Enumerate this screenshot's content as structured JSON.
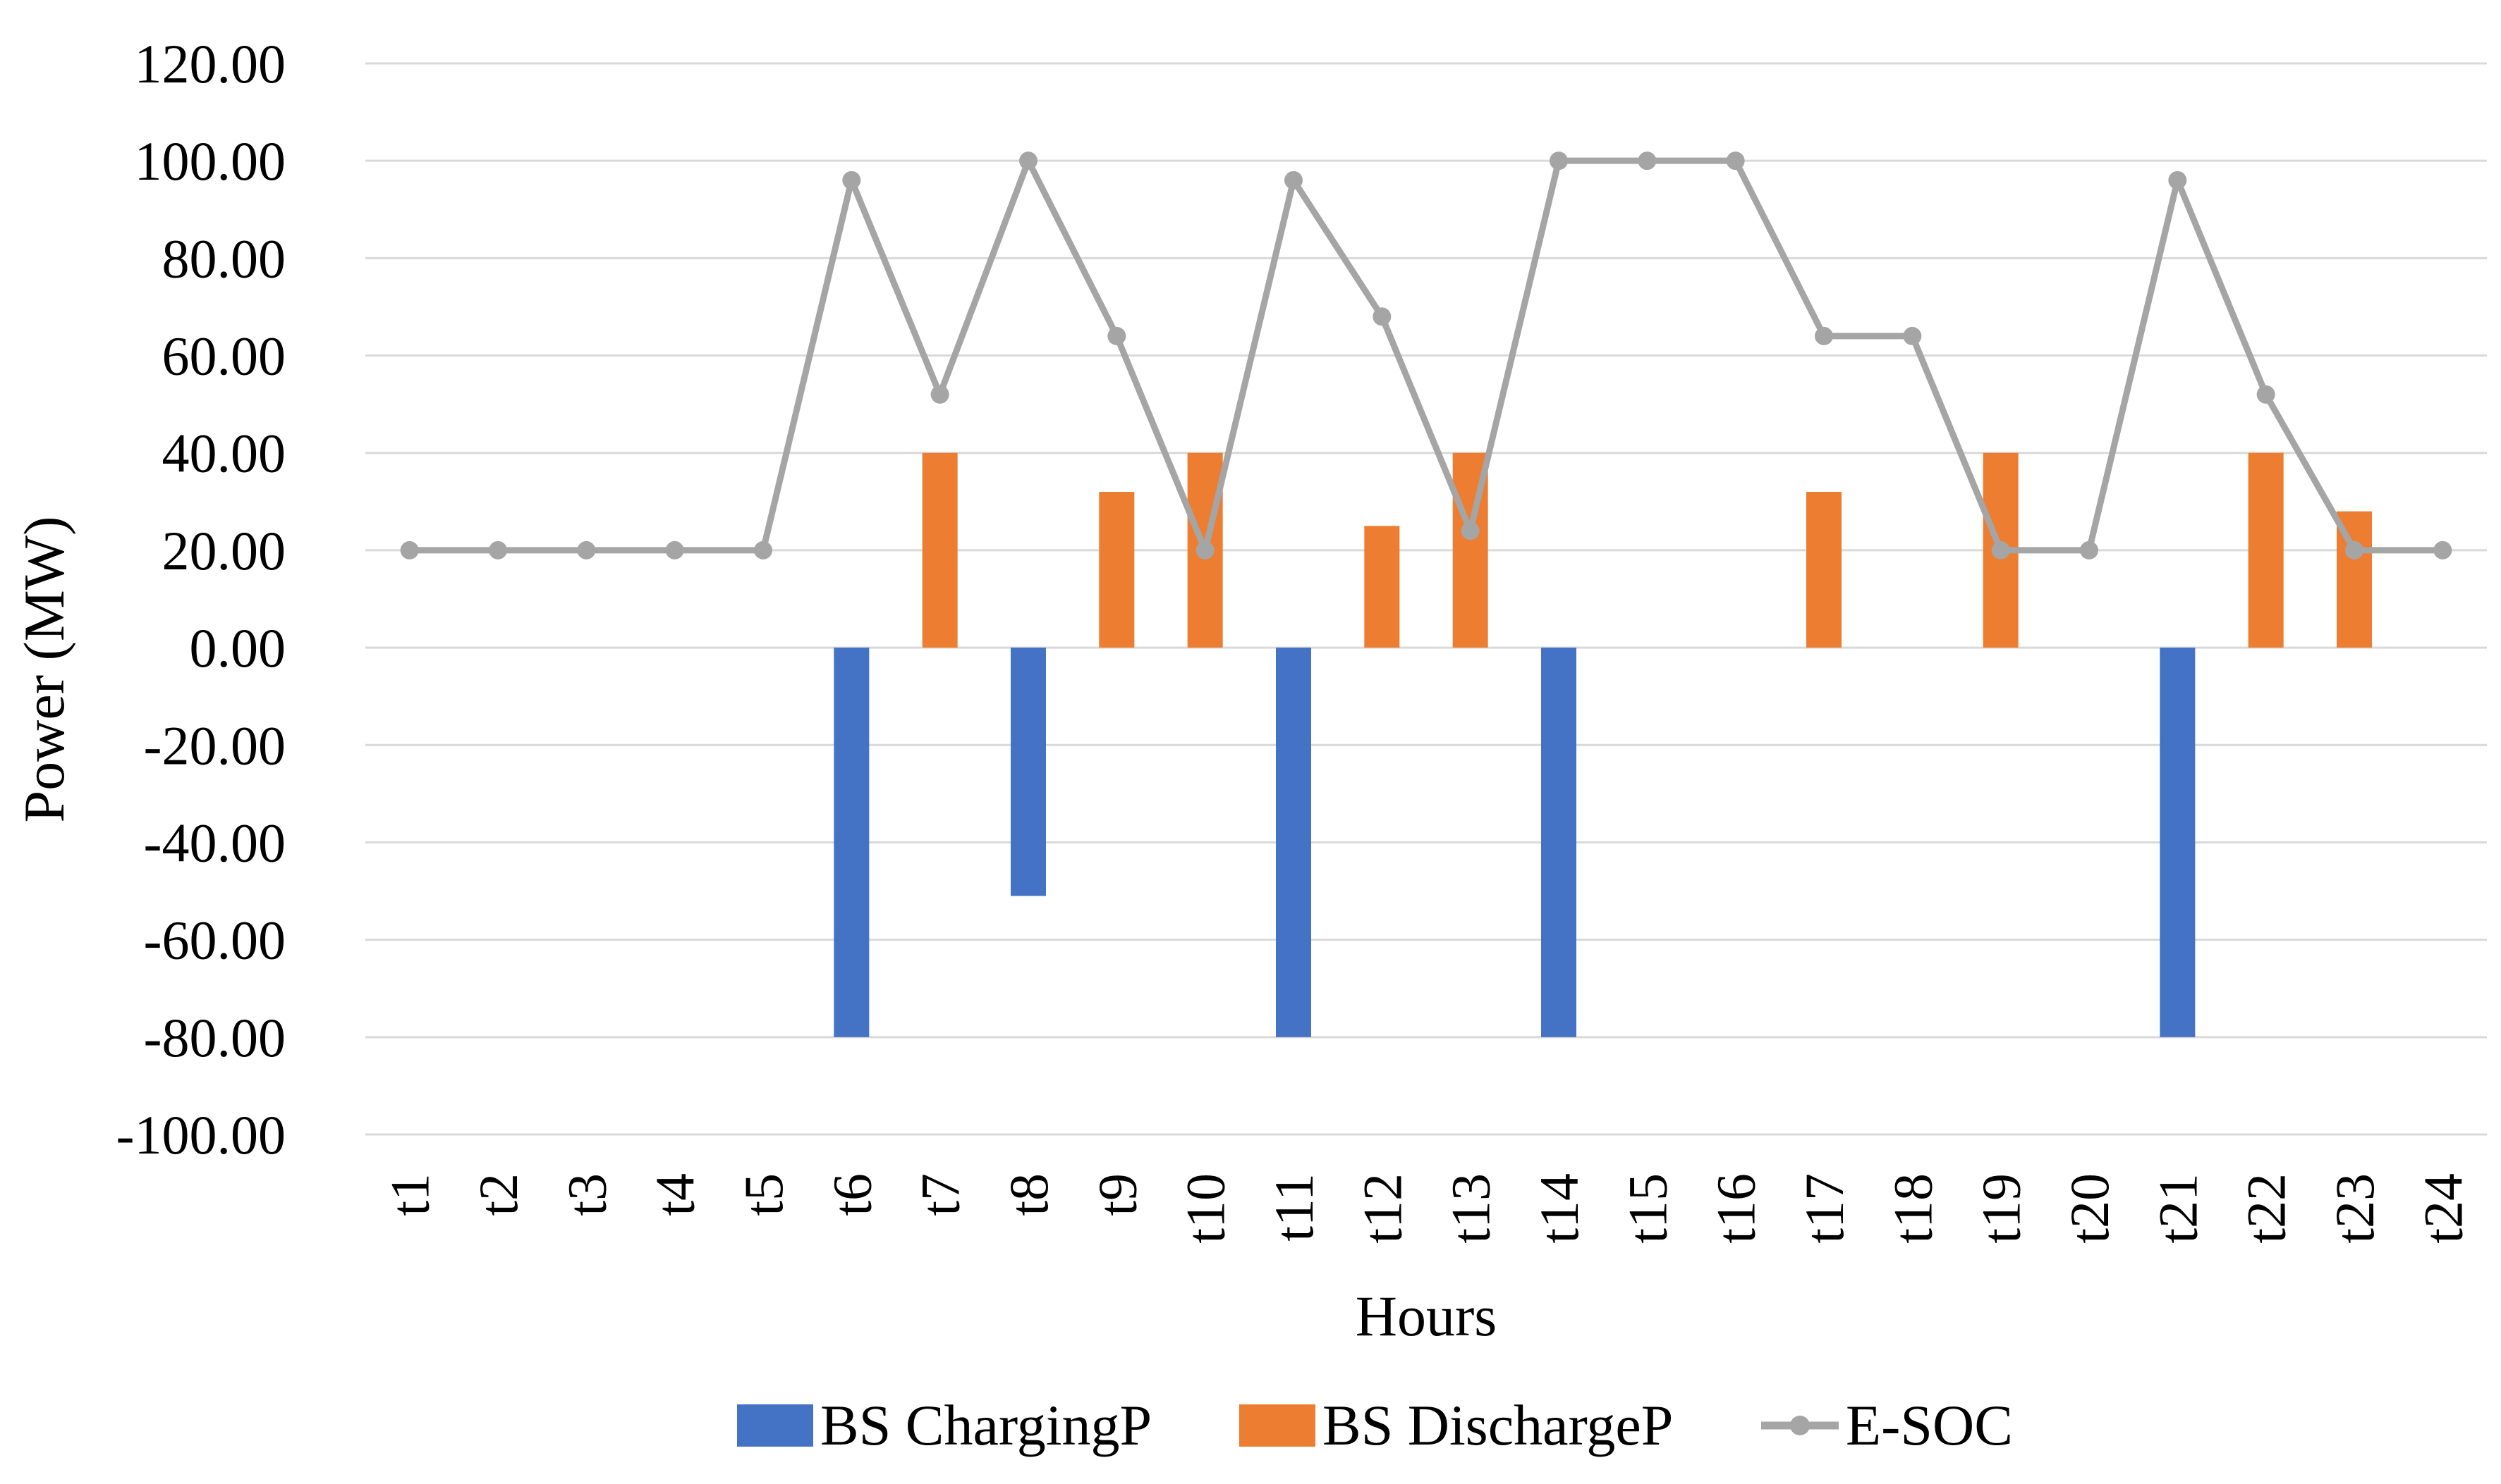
{
  "chart_data": {
    "type": "bar",
    "title": "",
    "xlabel": "Hours",
    "ylabel": "Power (MW)",
    "ylim": [
      -100,
      120
    ],
    "y_ticks": [
      "120.00",
      "100.00",
      "80.00",
      "60.00",
      "40.00",
      "20.00",
      "0.00",
      "-20.00",
      "-40.00",
      "-60.00",
      "-80.00",
      "-100.00"
    ],
    "y_tick_values": [
      120,
      100,
      80,
      60,
      40,
      20,
      0,
      -20,
      -40,
      -60,
      -80,
      -100
    ],
    "negative_tick_color": "#ff0000",
    "positive_tick_color": "#000000",
    "grid": true,
    "legend_position": "bottom",
    "categories": [
      "t1",
      "t2",
      "t3",
      "t4",
      "t5",
      "t6",
      "t7",
      "t8",
      "t9",
      "t10",
      "t11",
      "t12",
      "t13",
      "t14",
      "t15",
      "t16",
      "t17",
      "t18",
      "t19",
      "t20",
      "t21",
      "t22",
      "t23",
      "t24"
    ],
    "series": [
      {
        "name": "BS ChargingP",
        "kind": "bar",
        "color": "#4472c4",
        "values": [
          0,
          0,
          0,
          0,
          0,
          -80,
          0,
          -51,
          0,
          0,
          -80,
          0,
          0,
          -80,
          0,
          0,
          0,
          0,
          0,
          0,
          -80,
          0,
          0,
          0
        ]
      },
      {
        "name": "BS DischargeP",
        "kind": "bar",
        "color": "#ed7d31",
        "values": [
          0,
          0,
          0,
          0,
          0,
          0,
          40,
          0,
          32,
          40,
          0,
          25,
          40,
          0,
          0,
          0,
          32,
          0,
          40,
          0,
          0,
          40,
          28,
          0
        ]
      },
      {
        "name": "E-SOC",
        "kind": "line",
        "color": "#a5a5a5",
        "values": [
          20,
          20,
          20,
          20,
          20,
          96,
          52,
          100,
          64,
          20,
          96,
          68,
          24,
          100,
          100,
          100,
          64,
          64,
          20,
          20,
          96,
          52,
          20,
          20
        ]
      }
    ]
  }
}
